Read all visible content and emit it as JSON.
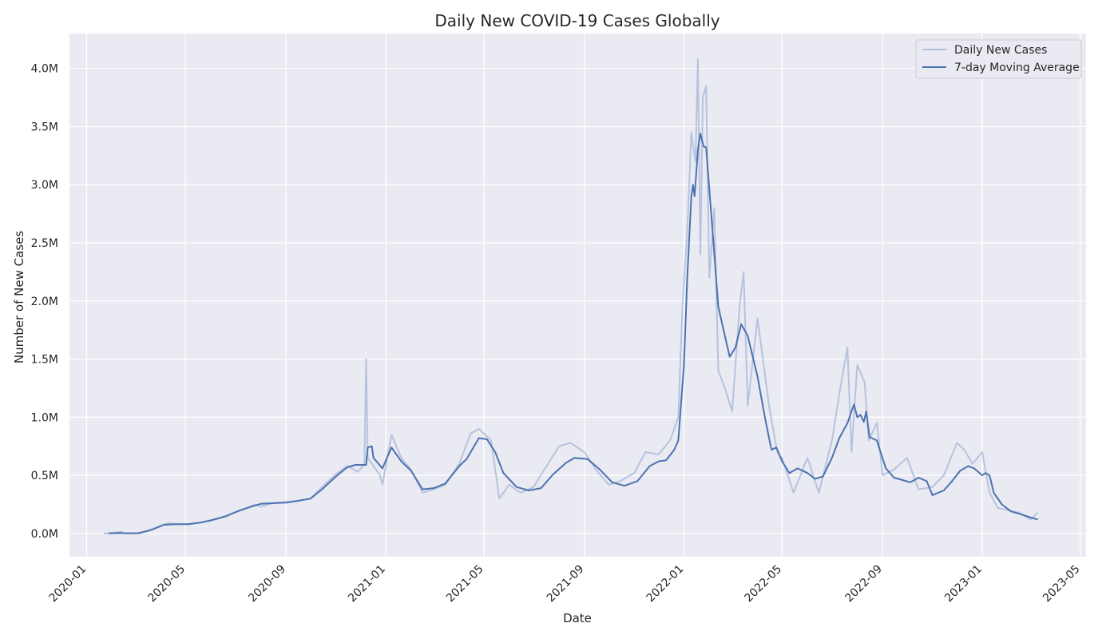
{
  "chart_data": {
    "type": "line",
    "title": "Daily New COVID-19 Cases Globally",
    "xlabel": "Date",
    "ylabel": "Number of New Cases",
    "x_ticks": [
      "2020-01",
      "2020-05",
      "2020-09",
      "2021-01",
      "2021-05",
      "2021-09",
      "2022-01",
      "2022-05",
      "2022-09",
      "2023-01",
      "2023-05"
    ],
    "y_ticks": [
      "0.0M",
      "0.5M",
      "1.0M",
      "1.5M",
      "2.0M",
      "2.5M",
      "3.0M",
      "3.5M",
      "4.0M"
    ],
    "ylim": [
      -200000,
      4300000
    ],
    "xlim": [
      "2019-12-11",
      "2023-05-08"
    ],
    "grid": true,
    "legend_position": "top-right",
    "x_unit": "date",
    "y_unit": "cases",
    "colors": {
      "daily": "#b0bfdc",
      "average": "#4c72b0",
      "plot_bg": "#eaeaf2",
      "grid": "#ffffff"
    },
    "series": [
      {
        "name": "Daily New Cases",
        "points": [
          [
            "2020-01-22",
            0
          ],
          [
            "2020-02-01",
            5000
          ],
          [
            "2020-02-13",
            15000
          ],
          [
            "2020-02-15",
            3000
          ],
          [
            "2020-03-01",
            2000
          ],
          [
            "2020-03-15",
            20000
          ],
          [
            "2020-04-01",
            70000
          ],
          [
            "2020-04-10",
            90000
          ],
          [
            "2020-04-20",
            80000
          ],
          [
            "2020-05-01",
            80000
          ],
          [
            "2020-05-15",
            90000
          ],
          [
            "2020-06-01",
            110000
          ],
          [
            "2020-06-15",
            140000
          ],
          [
            "2020-07-01",
            180000
          ],
          [
            "2020-07-15",
            220000
          ],
          [
            "2020-07-25",
            250000
          ],
          [
            "2020-08-01",
            230000
          ],
          [
            "2020-08-15",
            260000
          ],
          [
            "2020-09-01",
            270000
          ],
          [
            "2020-09-15",
            280000
          ],
          [
            "2020-10-01",
            300000
          ],
          [
            "2020-10-15",
            400000
          ],
          [
            "2020-11-01",
            510000
          ],
          [
            "2020-11-15",
            580000
          ],
          [
            "2020-11-28",
            530000
          ],
          [
            "2020-12-06",
            600000
          ],
          [
            "2020-12-08",
            1500000
          ],
          [
            "2020-12-10",
            650000
          ],
          [
            "2020-12-25",
            500000
          ],
          [
            "2020-12-28",
            420000
          ],
          [
            "2021-01-08",
            850000
          ],
          [
            "2021-01-20",
            650000
          ],
          [
            "2021-02-01",
            550000
          ],
          [
            "2021-02-15",
            350000
          ],
          [
            "2021-03-01",
            380000
          ],
          [
            "2021-03-15",
            420000
          ],
          [
            "2021-04-01",
            600000
          ],
          [
            "2021-04-15",
            860000
          ],
          [
            "2021-04-25",
            900000
          ],
          [
            "2021-05-10",
            800000
          ],
          [
            "2021-05-20",
            300000
          ],
          [
            "2021-06-01",
            420000
          ],
          [
            "2021-06-15",
            350000
          ],
          [
            "2021-07-01",
            400000
          ],
          [
            "2021-07-15",
            560000
          ],
          [
            "2021-08-01",
            750000
          ],
          [
            "2021-08-15",
            780000
          ],
          [
            "2021-09-01",
            700000
          ],
          [
            "2021-09-15",
            550000
          ],
          [
            "2021-10-01",
            420000
          ],
          [
            "2021-10-15",
            450000
          ],
          [
            "2021-11-01",
            520000
          ],
          [
            "2021-11-15",
            700000
          ],
          [
            "2021-12-01",
            680000
          ],
          [
            "2021-12-15",
            800000
          ],
          [
            "2021-12-25",
            1000000
          ],
          [
            "2021-12-30",
            1950000
          ],
          [
            "2022-01-05",
            2600000
          ],
          [
            "2022-01-10",
            3450000
          ],
          [
            "2022-01-15",
            3200000
          ],
          [
            "2022-01-18",
            4080000
          ],
          [
            "2022-01-21",
            2400000
          ],
          [
            "2022-01-24",
            3750000
          ],
          [
            "2022-01-28",
            3850000
          ],
          [
            "2022-02-01",
            2200000
          ],
          [
            "2022-02-07",
            2800000
          ],
          [
            "2022-02-12",
            1400000
          ],
          [
            "2022-02-20",
            1250000
          ],
          [
            "2022-03-01",
            1050000
          ],
          [
            "2022-03-10",
            1950000
          ],
          [
            "2022-03-15",
            2250000
          ],
          [
            "2022-03-20",
            1100000
          ],
          [
            "2022-04-01",
            1850000
          ],
          [
            "2022-04-15",
            1100000
          ],
          [
            "2022-04-25",
            700000
          ],
          [
            "2022-05-01",
            650000
          ],
          [
            "2022-05-15",
            350000
          ],
          [
            "2022-06-01",
            650000
          ],
          [
            "2022-06-15",
            350000
          ],
          [
            "2022-07-01",
            800000
          ],
          [
            "2022-07-10",
            1200000
          ],
          [
            "2022-07-20",
            1600000
          ],
          [
            "2022-07-25",
            700000
          ],
          [
            "2022-08-01",
            1450000
          ],
          [
            "2022-08-10",
            1300000
          ],
          [
            "2022-08-15",
            800000
          ],
          [
            "2022-08-25",
            950000
          ],
          [
            "2022-09-01",
            500000
          ],
          [
            "2022-09-15",
            550000
          ],
          [
            "2022-10-01",
            650000
          ],
          [
            "2022-10-15",
            380000
          ],
          [
            "2022-11-01",
            400000
          ],
          [
            "2022-11-15",
            500000
          ],
          [
            "2022-12-01",
            780000
          ],
          [
            "2022-12-10",
            720000
          ],
          [
            "2022-12-20",
            600000
          ],
          [
            "2023-01-01",
            700000
          ],
          [
            "2023-01-10",
            350000
          ],
          [
            "2023-01-20",
            220000
          ],
          [
            "2023-02-01",
            200000
          ],
          [
            "2023-02-15",
            180000
          ],
          [
            "2023-03-01",
            120000
          ],
          [
            "2023-03-10",
            180000
          ]
        ]
      },
      {
        "name": "7-day Moving Average",
        "points": [
          [
            "2020-01-28",
            2000
          ],
          [
            "2020-02-10",
            5000
          ],
          [
            "2020-02-20",
            2000
          ],
          [
            "2020-03-05",
            3000
          ],
          [
            "2020-03-20",
            30000
          ],
          [
            "2020-04-05",
            75000
          ],
          [
            "2020-04-20",
            80000
          ],
          [
            "2020-05-05",
            80000
          ],
          [
            "2020-05-20",
            95000
          ],
          [
            "2020-06-05",
            120000
          ],
          [
            "2020-06-20",
            150000
          ],
          [
            "2020-07-05",
            195000
          ],
          [
            "2020-07-20",
            230000
          ],
          [
            "2020-08-01",
            255000
          ],
          [
            "2020-08-15",
            260000
          ],
          [
            "2020-09-01",
            265000
          ],
          [
            "2020-09-15",
            280000
          ],
          [
            "2020-10-01",
            300000
          ],
          [
            "2020-10-15",
            380000
          ],
          [
            "2020-11-01",
            490000
          ],
          [
            "2020-11-15",
            570000
          ],
          [
            "2020-11-25",
            590000
          ],
          [
            "2020-12-08",
            590000
          ],
          [
            "2020-12-10",
            740000
          ],
          [
            "2020-12-15",
            750000
          ],
          [
            "2020-12-17",
            650000
          ],
          [
            "2020-12-28",
            560000
          ],
          [
            "2021-01-08",
            740000
          ],
          [
            "2021-01-20",
            620000
          ],
          [
            "2021-02-01",
            540000
          ],
          [
            "2021-02-15",
            380000
          ],
          [
            "2021-03-01",
            390000
          ],
          [
            "2021-03-15",
            430000
          ],
          [
            "2021-04-01",
            580000
          ],
          [
            "2021-04-10",
            640000
          ],
          [
            "2021-04-25",
            820000
          ],
          [
            "2021-05-05",
            810000
          ],
          [
            "2021-05-15",
            700000
          ],
          [
            "2021-05-25",
            520000
          ],
          [
            "2021-06-10",
            400000
          ],
          [
            "2021-06-25",
            370000
          ],
          [
            "2021-07-10",
            390000
          ],
          [
            "2021-07-25",
            510000
          ],
          [
            "2021-08-10",
            610000
          ],
          [
            "2021-08-20",
            650000
          ],
          [
            "2021-09-05",
            640000
          ],
          [
            "2021-09-20",
            550000
          ],
          [
            "2021-10-05",
            440000
          ],
          [
            "2021-10-20",
            410000
          ],
          [
            "2021-11-05",
            450000
          ],
          [
            "2021-11-20",
            580000
          ],
          [
            "2021-12-01",
            620000
          ],
          [
            "2021-12-10",
            630000
          ],
          [
            "2021-12-20",
            720000
          ],
          [
            "2021-12-25",
            800000
          ],
          [
            "2022-01-01",
            1450000
          ],
          [
            "2022-01-05",
            2200000
          ],
          [
            "2022-01-10",
            2900000
          ],
          [
            "2022-01-12",
            3000000
          ],
          [
            "2022-01-14",
            2900000
          ],
          [
            "2022-01-18",
            3300000
          ],
          [
            "2022-01-21",
            3440000
          ],
          [
            "2022-01-25",
            3330000
          ],
          [
            "2022-01-28",
            3320000
          ],
          [
            "2022-02-05",
            2600000
          ],
          [
            "2022-02-12",
            1950000
          ],
          [
            "2022-02-20",
            1700000
          ],
          [
            "2022-02-26",
            1520000
          ],
          [
            "2022-03-05",
            1600000
          ],
          [
            "2022-03-12",
            1800000
          ],
          [
            "2022-03-20",
            1700000
          ],
          [
            "2022-04-01",
            1350000
          ],
          [
            "2022-04-10",
            1000000
          ],
          [
            "2022-04-18",
            720000
          ],
          [
            "2022-04-24",
            740000
          ],
          [
            "2022-05-01",
            620000
          ],
          [
            "2022-05-10",
            520000
          ],
          [
            "2022-05-20",
            560000
          ],
          [
            "2022-06-01",
            520000
          ],
          [
            "2022-06-10",
            470000
          ],
          [
            "2022-06-20",
            490000
          ],
          [
            "2022-07-01",
            650000
          ],
          [
            "2022-07-10",
            820000
          ],
          [
            "2022-07-20",
            950000
          ],
          [
            "2022-07-28",
            1110000
          ],
          [
            "2022-08-01",
            1000000
          ],
          [
            "2022-08-05",
            1020000
          ],
          [
            "2022-08-09",
            960000
          ],
          [
            "2022-08-12",
            1050000
          ],
          [
            "2022-08-16",
            830000
          ],
          [
            "2022-08-25",
            800000
          ],
          [
            "2022-09-05",
            560000
          ],
          [
            "2022-09-15",
            480000
          ],
          [
            "2022-09-25",
            460000
          ],
          [
            "2022-10-05",
            440000
          ],
          [
            "2022-10-15",
            480000
          ],
          [
            "2022-10-25",
            450000
          ],
          [
            "2022-11-01",
            330000
          ],
          [
            "2022-11-15",
            370000
          ],
          [
            "2022-11-25",
            450000
          ],
          [
            "2022-12-05",
            540000
          ],
          [
            "2022-12-15",
            580000
          ],
          [
            "2022-12-22",
            560000
          ],
          [
            "2023-01-01",
            500000
          ],
          [
            "2023-01-05",
            520000
          ],
          [
            "2023-01-10",
            500000
          ],
          [
            "2023-01-15",
            350000
          ],
          [
            "2023-01-25",
            250000
          ],
          [
            "2023-02-05",
            190000
          ],
          [
            "2023-02-15",
            170000
          ],
          [
            "2023-02-28",
            140000
          ],
          [
            "2023-03-10",
            120000
          ]
        ]
      }
    ]
  }
}
